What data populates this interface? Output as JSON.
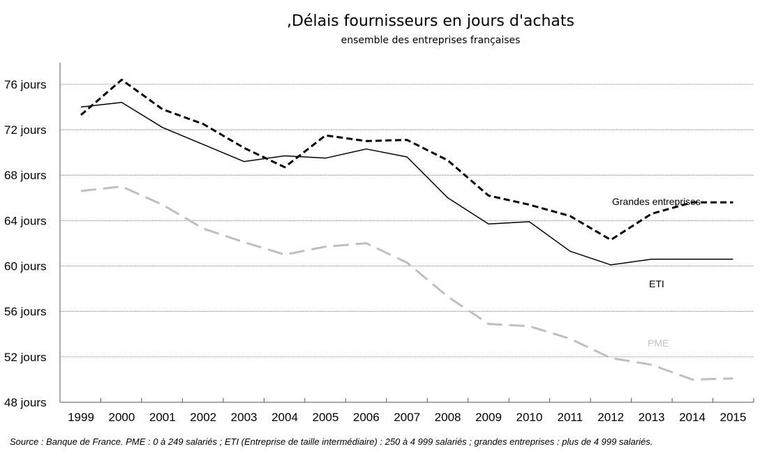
{
  "chart_data": {
    "type": "line",
    "title": ",Délais fournisseurs en jours d'achats",
    "subtitle": "ensemble des entreprises françaises",
    "x": [
      "1999",
      "2000",
      "2001",
      "2002",
      "2003",
      "2004",
      "2005",
      "2006",
      "2007",
      "2008",
      "2009",
      "2010",
      "2011",
      "2012",
      "2013",
      "2014",
      "2015"
    ],
    "yticks": [
      "48 jours",
      "52 jours",
      "56 jours",
      "60 jours",
      "64 jours",
      "68 jours",
      "72 jours",
      "76 jours"
    ],
    "ylim": [
      48,
      78
    ],
    "grid": true,
    "series": [
      {
        "name": "Grandes entreprises",
        "style": "dashed-black",
        "color": "#000000",
        "values": [
          73.3,
          76.4,
          73.8,
          72.5,
          70.4,
          68.7,
          71.5,
          71.0,
          71.1,
          69.3,
          66.2,
          65.4,
          64.4,
          62.3,
          64.6,
          65.6,
          65.6
        ]
      },
      {
        "name": "ETI",
        "style": "solid-black",
        "color": "#000000",
        "values": [
          74.0,
          74.4,
          72.2,
          70.7,
          69.2,
          69.7,
          69.5,
          70.3,
          69.6,
          66.0,
          63.7,
          63.9,
          61.3,
          60.1,
          60.6,
          60.6,
          60.6
        ]
      },
      {
        "name": "PME",
        "style": "dashed-gray",
        "color": "#bfbfbf",
        "values": [
          66.6,
          67.0,
          65.4,
          63.3,
          62.1,
          61.0,
          61.7,
          62.0,
          60.3,
          57.3,
          54.9,
          54.7,
          53.6,
          51.9,
          51.3,
          50.0,
          50.1
        ]
      }
    ]
  },
  "source": "Source : Banque de France. PME : 0 à 249 salariés ; ETI (Entreprise de taille intermédiaire) : 250 à 4 999 salariés ; grandes entreprises : plus de 4 999 salariés."
}
